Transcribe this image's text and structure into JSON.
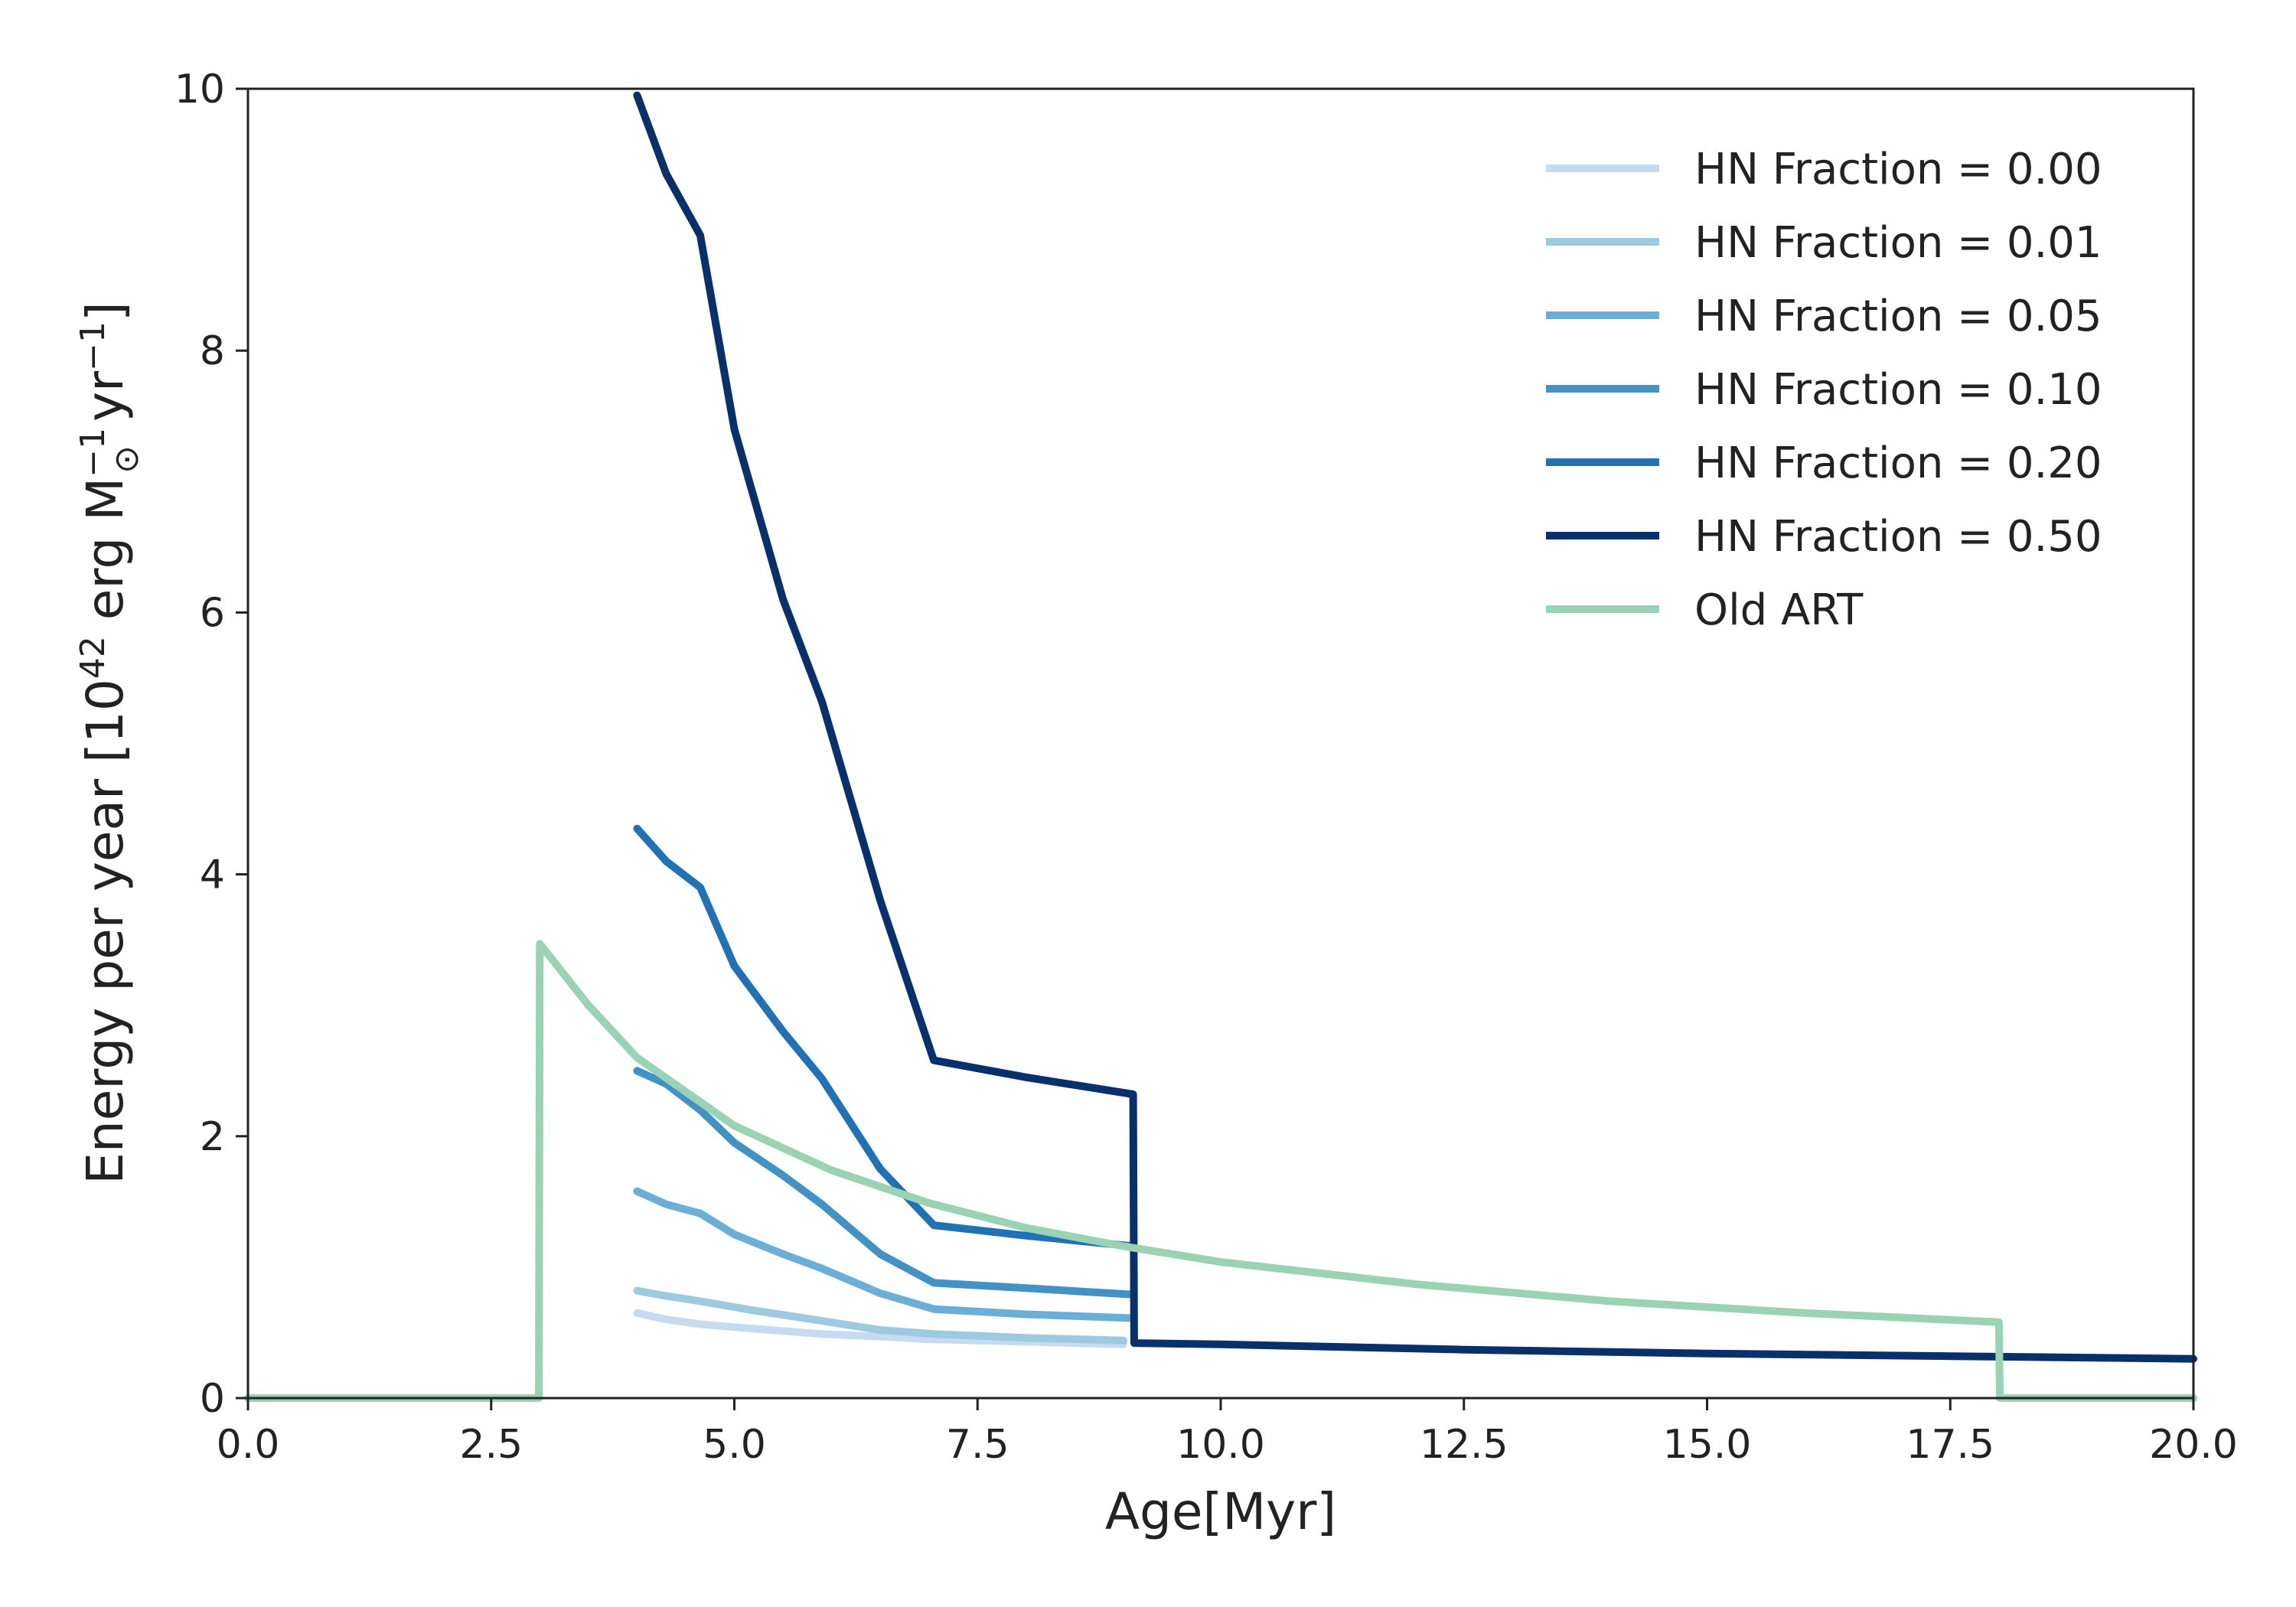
{
  "chart_data": {
    "type": "line",
    "xlabel": "Age[Myr]",
    "ylabel_parts": {
      "main": "Energy per year [10",
      "exp42": "42",
      "erg": " erg M",
      "exp_m1": "−1",
      "sun": "⊙",
      "yr": " yr",
      "exp_m1b": "−1",
      "close": "]"
    },
    "xlim": [
      0,
      20
    ],
    "ylim": [
      0,
      10
    ],
    "xticks": [
      "0.0",
      "2.5",
      "5.0",
      "7.5",
      "10.0",
      "12.5",
      "15.0",
      "17.5",
      "20.0"
    ],
    "xtick_values": [
      0,
      2.5,
      5,
      7.5,
      10,
      12.5,
      15,
      17.5,
      20
    ],
    "yticks": [
      "0",
      "2",
      "4",
      "6",
      "8",
      "10"
    ],
    "ytick_values": [
      0,
      2,
      4,
      6,
      8,
      10
    ],
    "grid": false,
    "legend_position": "top-right",
    "series": [
      {
        "name": "HN Fraction = 0.00",
        "color": "#c6dbef",
        "points": [
          [
            4.0,
            0.65
          ],
          [
            4.3,
            0.6
          ],
          [
            4.7,
            0.56
          ],
          [
            5.2,
            0.53
          ],
          [
            5.9,
            0.49
          ],
          [
            6.5,
            0.47
          ],
          [
            7.0,
            0.45
          ],
          [
            8.0,
            0.43
          ],
          [
            9.0,
            0.41
          ]
        ]
      },
      {
        "name": "HN Fraction = 0.01",
        "color": "#9ecae1",
        "points": [
          [
            4.0,
            0.82
          ],
          [
            4.3,
            0.78
          ],
          [
            4.65,
            0.74
          ],
          [
            5.2,
            0.67
          ],
          [
            5.9,
            0.59
          ],
          [
            6.5,
            0.52
          ],
          [
            7.05,
            0.49
          ],
          [
            8.0,
            0.46
          ],
          [
            9.0,
            0.44
          ]
        ]
      },
      {
        "name": "HN Fraction = 0.05",
        "color": "#6baed6",
        "points": [
          [
            4.0,
            1.58
          ],
          [
            4.3,
            1.48
          ],
          [
            4.65,
            1.41
          ],
          [
            5.0,
            1.25
          ],
          [
            5.5,
            1.1
          ],
          [
            5.9,
            0.99
          ],
          [
            6.5,
            0.8
          ],
          [
            7.05,
            0.68
          ],
          [
            8.0,
            0.64
          ],
          [
            9.1,
            0.61
          ]
        ]
      },
      {
        "name": "HN Fraction = 0.10",
        "color": "#4292c6",
        "points": [
          [
            4.0,
            2.5
          ],
          [
            4.3,
            2.4
          ],
          [
            4.65,
            2.2
          ],
          [
            5.0,
            1.95
          ],
          [
            5.5,
            1.7
          ],
          [
            5.9,
            1.48
          ],
          [
            6.5,
            1.1
          ],
          [
            7.05,
            0.88
          ],
          [
            8.0,
            0.84
          ],
          [
            9.1,
            0.79
          ]
        ]
      },
      {
        "name": "HN Fraction = 0.20",
        "color": "#2171b5",
        "points": [
          [
            4.0,
            4.35
          ],
          [
            4.3,
            4.1
          ],
          [
            4.65,
            3.9
          ],
          [
            5.0,
            3.3
          ],
          [
            5.5,
            2.8
          ],
          [
            5.9,
            2.44
          ],
          [
            6.5,
            1.75
          ],
          [
            7.05,
            1.32
          ],
          [
            8.0,
            1.24
          ],
          [
            9.1,
            1.16
          ]
        ]
      },
      {
        "name": "HN Fraction = 0.50",
        "color": "#08306b",
        "points": [
          [
            4.0,
            9.95
          ],
          [
            4.3,
            9.35
          ],
          [
            4.65,
            8.88
          ],
          [
            5.0,
            7.4
          ],
          [
            5.5,
            6.1
          ],
          [
            5.9,
            5.32
          ],
          [
            6.5,
            3.8
          ],
          [
            7.05,
            2.58
          ],
          [
            8.0,
            2.45
          ],
          [
            9.1,
            2.32
          ],
          [
            9.11,
            0.42
          ],
          [
            10,
            0.41
          ],
          [
            12.5,
            0.37
          ],
          [
            15,
            0.34
          ],
          [
            17.5,
            0.32
          ],
          [
            20,
            0.3
          ]
        ]
      },
      {
        "name": "Old ART",
        "color": "#99d3b4",
        "points": [
          [
            0,
            0
          ],
          [
            2.99,
            0
          ],
          [
            3.0,
            3.47
          ],
          [
            3.5,
            3.0
          ],
          [
            4.0,
            2.6
          ],
          [
            5.0,
            2.08
          ],
          [
            6.0,
            1.74
          ],
          [
            7.0,
            1.49
          ],
          [
            8.0,
            1.3
          ],
          [
            9.0,
            1.16
          ],
          [
            10.0,
            1.04
          ],
          [
            12.0,
            0.87
          ],
          [
            14.0,
            0.74
          ],
          [
            16.0,
            0.65
          ],
          [
            18.0,
            0.58
          ],
          [
            18.01,
            0
          ],
          [
            20,
            0
          ]
        ]
      }
    ]
  }
}
